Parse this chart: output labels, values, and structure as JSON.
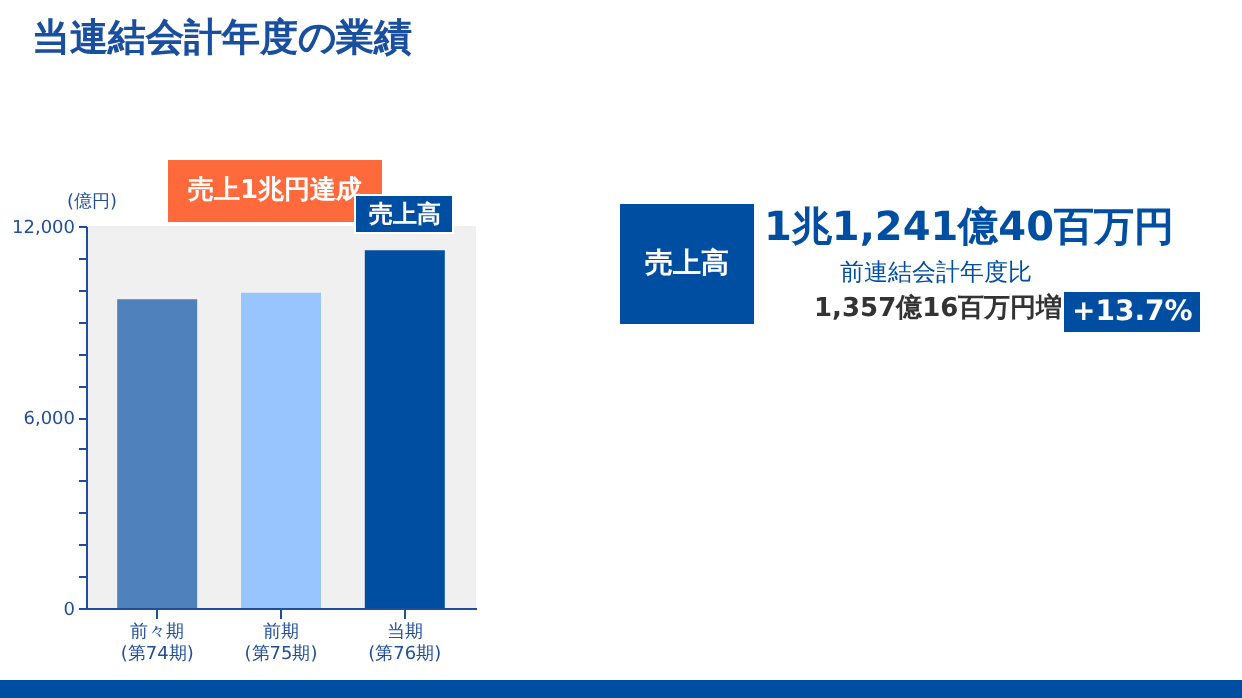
{
  "chart_data": {
    "type": "bar",
    "title": "当連結会計年度の業績",
    "ylabel": "(億円)",
    "categories": [
      "前々期\n(第74期)",
      "前期\n(第75期)",
      "当期\n(第76期)"
    ],
    "values": [
      9700,
      9900,
      11241
    ],
    "colors": [
      "#4f81bd",
      "#99c5ff",
      "#004ea2"
    ],
    "ylim": [
      0,
      12000
    ],
    "yticks": [
      0,
      {
        "value": 1000,
        "label": null
      },
      {
        "value": 2000,
        "label": null
      },
      {
        "value": 3000,
        "label": null
      },
      {
        "value": 4000,
        "label": null
      },
      {
        "value": 5000,
        "label": null
      },
      {
        "value": 6000,
        "label": "6,000"
      },
      {
        "value": 7000,
        "label": null
      },
      {
        "value": 8000,
        "label": null
      },
      {
        "value": 9000,
        "label": null
      },
      {
        "value": 10000,
        "label": null
      },
      {
        "value": 11000,
        "label": null
      },
      {
        "value": 12000,
        "label": "12,000"
      }
    ],
    "grid": false,
    "annotations": [
      "売上1兆円達成",
      {
        "text": "売上高",
        "x": "当期\n(第76期)",
        "y": 11241
      },
      "売上高",
      "1兆1,241億40百万円",
      "前連結会計年度比",
      "1,357億16百万円増",
      "+13.7%"
    ]
  }
}
